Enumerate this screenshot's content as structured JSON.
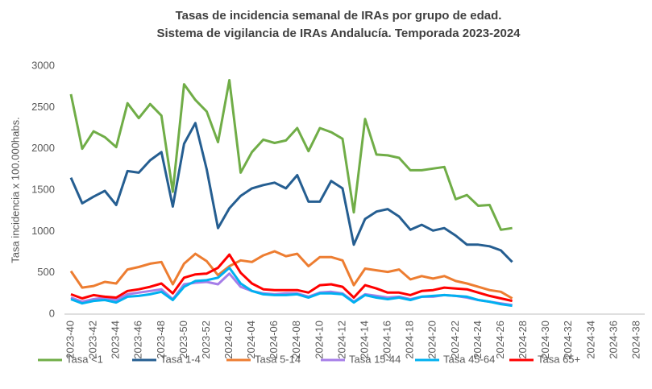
{
  "chart_data": {
    "type": "line",
    "title": [
      "Tasas de incidencia semanal de IRAs por grupo de edad.",
      "Sistema de vigilancia de IRAs Andalucía. Temporada 2023-2024"
    ],
    "ylabel": "Tasa incidencia x 100.000habs.",
    "categories": [
      "2023-40",
      null,
      "2023-42",
      null,
      "2023-44",
      null,
      "2023-46",
      null,
      "2023-48",
      null,
      "2023-50",
      null,
      "2023-52",
      null,
      "2024-02",
      null,
      "2024-04",
      null,
      "2024-06",
      null,
      "2024-08",
      null,
      "2024-10",
      null,
      "2024-12",
      null,
      "2024-14",
      null,
      "2024-16",
      null,
      "2024-18",
      null,
      "2024-20",
      null,
      "2024-22",
      null,
      "2024-24",
      null,
      "2024-26",
      null,
      "2024-28",
      null,
      "2024-30",
      null,
      "2024-32",
      null,
      "2024-34",
      null,
      "2024-36",
      null,
      "2024-38"
    ],
    "ylim": [
      0,
      3000
    ],
    "yticks": [
      0,
      500,
      1000,
      1500,
      2000,
      2500,
      3000
    ],
    "grid": false,
    "legend": "bottom",
    "series": [
      {
        "name": "Tasa <1",
        "color": "#70ad47",
        "values": [
          2660,
          2000,
          2210,
          2140,
          2020,
          2550,
          2370,
          2540,
          2400,
          1480,
          2780,
          2590,
          2450,
          2080,
          2830,
          1710,
          1960,
          2110,
          2070,
          2100,
          2250,
          1970,
          2250,
          2200,
          2120,
          1230,
          2360,
          1930,
          1920,
          1890,
          1740,
          1740,
          1760,
          1780,
          1390,
          1440,
          1310,
          1320,
          1020,
          1040,
          null,
          null,
          null,
          null,
          null,
          null,
          null,
          null,
          null,
          null,
          null
        ]
      },
      {
        "name": "Tasa 1-4",
        "color": "#255e91",
        "values": [
          1650,
          1340,
          1420,
          1490,
          1320,
          1730,
          1710,
          1860,
          1960,
          1300,
          2060,
          2310,
          1750,
          1040,
          1280,
          1430,
          1520,
          1560,
          1590,
          1520,
          1680,
          1360,
          1360,
          1610,
          1520,
          840,
          1150,
          1240,
          1270,
          1180,
          1020,
          1080,
          1010,
          1040,
          950,
          840,
          840,
          820,
          770,
          630,
          null,
          null,
          null,
          null,
          null,
          null,
          null,
          null,
          null,
          null,
          null
        ]
      },
      {
        "name": "Tasa 5-14",
        "color": "#ed7d31",
        "values": [
          520,
          320,
          340,
          390,
          370,
          540,
          570,
          610,
          630,
          360,
          610,
          730,
          640,
          470,
          580,
          650,
          630,
          710,
          760,
          700,
          730,
          580,
          690,
          690,
          650,
          350,
          550,
          530,
          510,
          540,
          420,
          460,
          430,
          460,
          400,
          370,
          330,
          290,
          270,
          190,
          null,
          null,
          null,
          null,
          null,
          null,
          null,
          null,
          null,
          null,
          null
        ]
      },
      {
        "name": "Tasa 15-44",
        "color": "#a67ee8",
        "values": [
          200,
          150,
          180,
          200,
          170,
          240,
          260,
          280,
          300,
          180,
          360,
          380,
          390,
          360,
          490,
          330,
          280,
          250,
          240,
          250,
          250,
          210,
          260,
          270,
          250,
          150,
          240,
          220,
          200,
          210,
          180,
          210,
          210,
          230,
          220,
          200,
          170,
          150,
          130,
          110,
          null,
          null,
          null,
          null,
          null,
          null,
          null,
          null,
          null,
          null,
          null
        ]
      },
      {
        "name": "Tasa 45-64",
        "color": "#00b0f0",
        "values": [
          180,
          130,
          160,
          170,
          140,
          210,
          220,
          240,
          270,
          170,
          330,
          400,
          410,
          440,
          560,
          370,
          280,
          240,
          230,
          230,
          240,
          200,
          250,
          250,
          240,
          140,
          230,
          200,
          180,
          200,
          170,
          210,
          220,
          230,
          220,
          210,
          170,
          150,
          120,
          100,
          null,
          null,
          null,
          null,
          null,
          null,
          null,
          null,
          null,
          null,
          null
        ]
      },
      {
        "name": "Tasa 65+",
        "color": "#ff0000",
        "values": [
          240,
          190,
          230,
          210,
          200,
          280,
          300,
          330,
          370,
          250,
          440,
          480,
          490,
          560,
          720,
          500,
          370,
          300,
          290,
          290,
          290,
          260,
          350,
          360,
          330,
          200,
          350,
          310,
          260,
          260,
          230,
          280,
          290,
          320,
          310,
          300,
          260,
          220,
          190,
          160,
          null,
          null,
          null,
          null,
          null,
          null,
          null,
          null,
          null,
          null,
          null
        ]
      }
    ]
  }
}
